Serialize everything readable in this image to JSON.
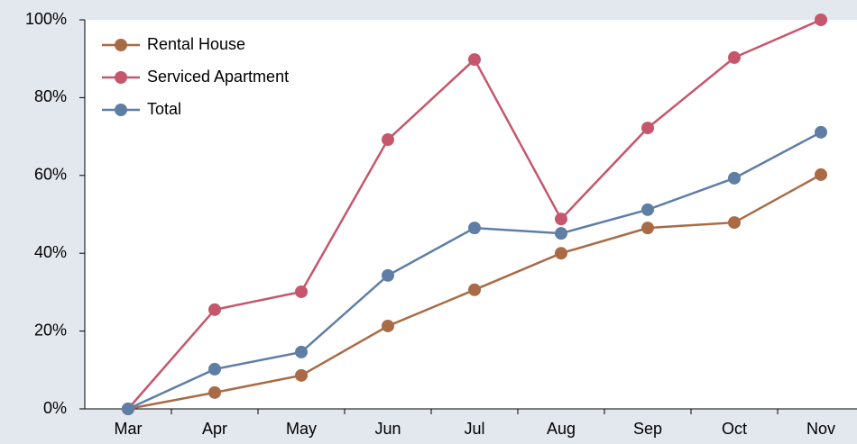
{
  "chart_data": {
    "type": "line",
    "categories": [
      "Mar",
      "Apr",
      "May",
      "Jun",
      "Jul",
      "Aug",
      "Sep",
      "Oct",
      "Nov"
    ],
    "series": [
      {
        "name": "Rental House",
        "color": "#a96b45",
        "values": [
          0,
          4.2,
          8.6,
          21.3,
          30.6,
          40,
          46.5,
          47.9,
          60.2
        ]
      },
      {
        "name": "Serviced Apartment",
        "color": "#c6566c",
        "values": [
          0,
          25.5,
          30.1,
          69.2,
          89.8,
          48.8,
          72.2,
          90.3,
          100
        ]
      },
      {
        "name": "Total",
        "color": "#5f7ea6",
        "values": [
          0,
          10.2,
          14.6,
          34.3,
          46.5,
          45.1,
          51.2,
          59.3,
          71.1
        ]
      }
    ],
    "ylim": [
      0,
      100
    ],
    "yticks": [
      {
        "value": 0,
        "label": "0%"
      },
      {
        "value": 20,
        "label": "20%"
      },
      {
        "value": 40,
        "label": "40%"
      },
      {
        "value": 60,
        "label": "60%"
      },
      {
        "value": 80,
        "label": "80%"
      },
      {
        "value": 100,
        "label": "100%"
      }
    ],
    "legend": "upper left"
  }
}
